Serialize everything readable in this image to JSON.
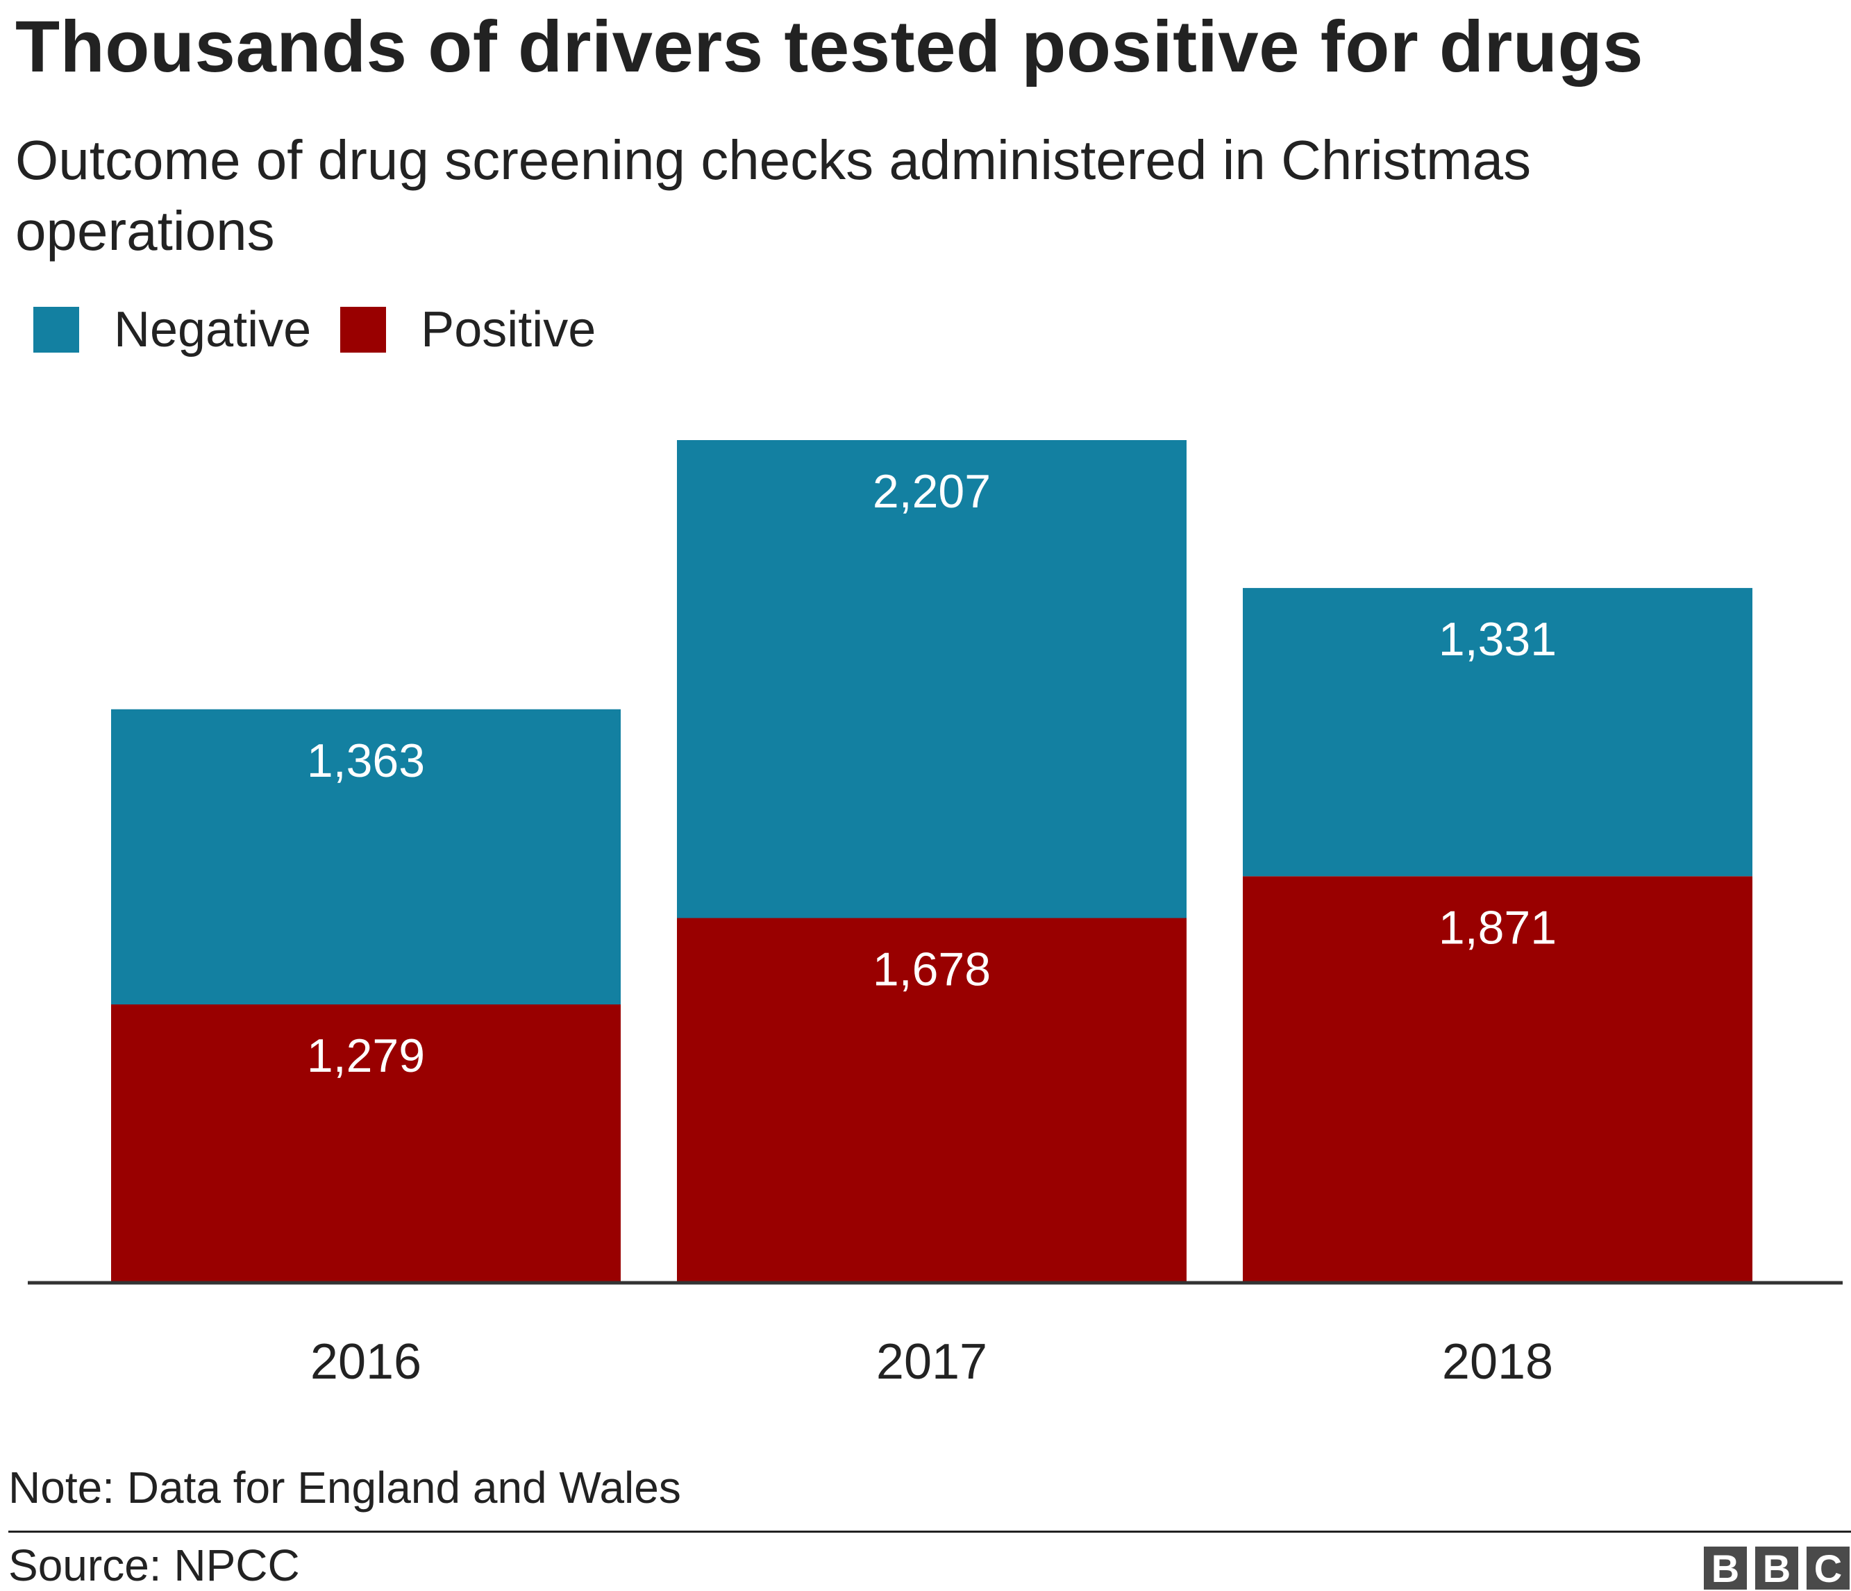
{
  "header": {
    "title": "Thousands of drivers tested positive for drugs",
    "subtitle": "Outcome of drug screening checks administered in Christmas operations"
  },
  "legend": {
    "items": [
      {
        "label": "Negative",
        "color": "#1380A1"
      },
      {
        "label": "Positive",
        "color": "#990000"
      }
    ]
  },
  "chart_data": {
    "type": "bar",
    "stacked": true,
    "title": "Thousands of drivers tested positive for drugs",
    "subtitle": "Outcome of drug screening checks administered in Christmas operations",
    "categories": [
      "2016",
      "2017",
      "2018"
    ],
    "series": [
      {
        "name": "Positive",
        "color": "#990000",
        "values": [
          1279,
          1678,
          1871
        ],
        "labels": [
          "1,279",
          "1,678",
          "1,871"
        ]
      },
      {
        "name": "Negative",
        "color": "#1380A1",
        "values": [
          1363,
          2207,
          1331
        ],
        "labels": [
          "1,363",
          "2,207",
          "1,331"
        ]
      }
    ],
    "ylim": [
      0,
      3885
    ],
    "grid": false,
    "legend_position": "top-left"
  },
  "footer": {
    "note": "Note: Data for England and Wales",
    "source": "Source: NPCC",
    "logo_letters": [
      "B",
      "B",
      "C"
    ]
  }
}
